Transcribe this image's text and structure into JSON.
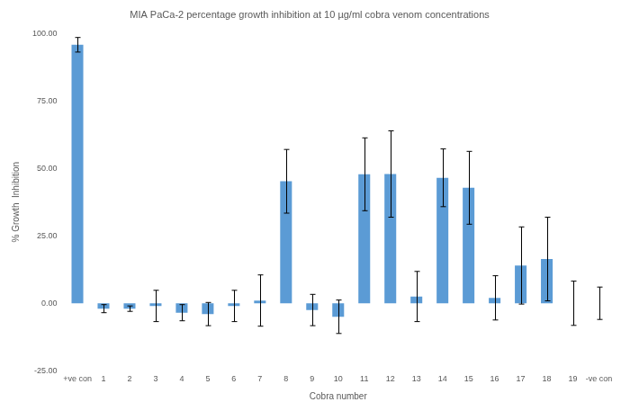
{
  "chart_data": {
    "type": "bar",
    "title": "MIA PaCa-2 percentage growth inhibition at 10 µg/ml cobra venom concentrations",
    "x_label": "Cobra number",
    "y_label": "% Growth  Inhibition",
    "categories": [
      "+ve con",
      "1",
      "2",
      "3",
      "4",
      "5",
      "6",
      "7",
      "8",
      "9",
      "10",
      "11",
      "12",
      "13",
      "14",
      "15",
      "16",
      "17",
      "18",
      "19",
      "-ve con"
    ],
    "values": [
      95.8,
      -2.0,
      -2.0,
      -1.0,
      -3.5,
      -4.0,
      -1.0,
      1.0,
      45.2,
      -2.5,
      -5.0,
      47.8,
      47.9,
      2.5,
      46.5,
      42.8,
      2.0,
      14.0,
      16.4,
      0,
      0
    ],
    "errors": [
      2.7,
      1.5,
      1.0,
      5.8,
      3.0,
      4.3,
      5.8,
      9.5,
      11.8,
      5.8,
      6.2,
      13.5,
      16.0,
      9.3,
      10.7,
      13.5,
      8.2,
      14.3,
      15.5,
      8.2,
      6.0
    ],
    "color": "#5b9bd5",
    "ylim": [
      -25,
      100
    ],
    "yticks": [
      {
        "value": -25,
        "label": "-25.00"
      },
      {
        "value": 0,
        "label": "0.00"
      },
      {
        "value": 25,
        "label": "25.00"
      },
      {
        "value": 50,
        "label": "50.00"
      },
      {
        "value": 75,
        "label": "75.00"
      },
      {
        "value": 100,
        "label": "100.00"
      }
    ],
    "grid": false
  }
}
